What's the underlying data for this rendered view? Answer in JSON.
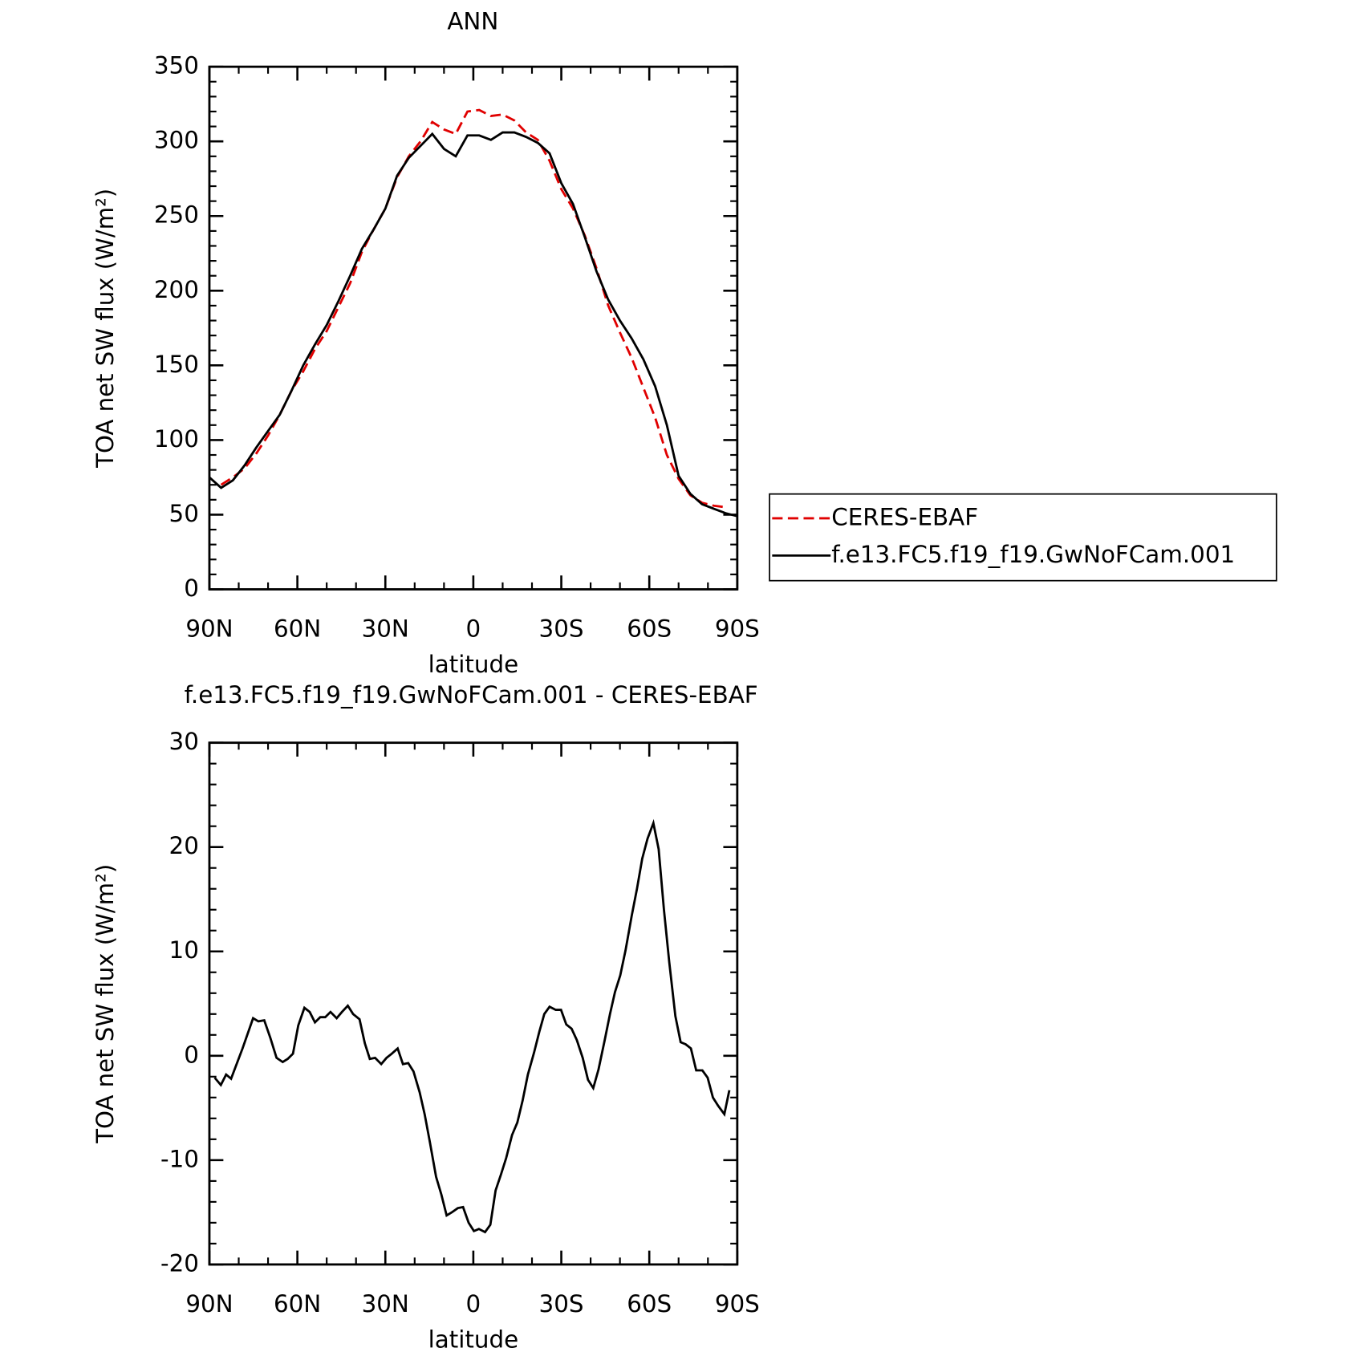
{
  "chart_data": [
    {
      "type": "line",
      "title": "ANN",
      "xlabel": "latitude",
      "ylabel": "TOA net SW flux (W/m²)",
      "x": [
        90,
        86,
        82,
        78,
        74,
        70,
        66,
        62,
        58,
        54,
        50,
        46,
        42,
        38,
        34,
        30,
        26,
        22,
        18,
        14,
        10,
        6,
        2,
        -2,
        -6,
        -10,
        -14,
        -18,
        -22,
        -26,
        -30,
        -34,
        -38,
        -42,
        -46,
        -50,
        -54,
        -58,
        -62,
        -66,
        -70,
        -74,
        -78,
        -82,
        -86,
        -90
      ],
      "series": [
        {
          "name": "CERES-EBAF",
          "color": "#e00000",
          "dashed": true,
          "values": [
            null,
            70,
            75,
            81,
            91,
            103,
            117,
            133,
            146,
            161,
            173,
            189,
            205,
            226,
            241,
            255,
            276,
            290,
            300,
            313,
            308,
            305,
            320,
            321,
            317,
            318,
            314,
            306,
            301,
            287,
            268,
            255,
            237,
            215,
            190,
            172,
            155,
            135,
            115,
            90,
            74,
            63,
            58,
            56,
            55,
            null
          ]
        },
        {
          "name": "f.e13.FC5.f19_f19.GwNoFCam.001",
          "color": "#000000",
          "dashed": false,
          "values": [
            75,
            68,
            73,
            83,
            95,
            106,
            117,
            133,
            150,
            164,
            177,
            193,
            210,
            228,
            241,
            255,
            277,
            289,
            297,
            305,
            295,
            290,
            304,
            304,
            301,
            306,
            306,
            303,
            299,
            292,
            272,
            258,
            236,
            213,
            194,
            180,
            168,
            154,
            136,
            110,
            76,
            64,
            57,
            54,
            51,
            49
          ]
        }
      ],
      "xlim": [
        90,
        -90
      ],
      "xticks": [
        {
          "value": 90,
          "label": "90N"
        },
        {
          "value": 60,
          "label": "60N"
        },
        {
          "value": 30,
          "label": "30N"
        },
        0,
        {
          "value": -30,
          "label": "30S"
        },
        {
          "value": -60,
          "label": "60S"
        },
        {
          "value": -90,
          "label": "90S"
        }
      ],
      "ylim": [
        0,
        350
      ],
      "yticks": [
        0,
        50,
        100,
        150,
        200,
        250,
        300,
        350
      ],
      "legend": "right"
    },
    {
      "type": "line",
      "title": "f.e13.FC5.f19_f19.GwNoFCam.001 - CERES-EBAF",
      "xlabel": "latitude",
      "ylabel": "TOA net SW flux (W/m²)",
      "x": [
        88.2,
        86.1,
        84.3,
        82.6,
        78.7,
        75.1,
        73.3,
        71.3,
        69.2,
        67.1,
        65.0,
        63.3,
        61.5,
        59.7,
        57.6,
        55.8,
        54.0,
        52.2,
        50.5,
        48.7,
        46.6,
        44.8,
        42.8,
        41.0,
        38.8,
        37.0,
        35.3,
        33.5,
        31.4,
        29.6,
        27.8,
        25.8,
        24.0,
        22.2,
        20.4,
        18.3,
        16.6,
        14.8,
        12.7,
        10.9,
        9.1,
        7.3,
        5.3,
        3.5,
        1.6,
        -0.2,
        -1.9,
        -4.0,
        -5.8,
        -7.6,
        -9.4,
        -11.2,
        -13.2,
        -15.0,
        -16.8,
        -18.6,
        -20.7,
        -22.5,
        -24.2,
        -26.0,
        -28.1,
        -29.9,
        -31.7,
        -33.5,
        -35.3,
        -37.3,
        -39.1,
        -40.9,
        -42.7,
        -44.8,
        -46.6,
        -48.3,
        -50.1,
        -51.9,
        -54.0,
        -55.8,
        -57.6,
        -59.4,
        -61.4,
        -63.2,
        -65.0,
        -66.8,
        -68.9,
        -70.7,
        -72.4,
        -74.2,
        -76.0,
        -78.1,
        -79.9,
        -81.7,
        -83.5,
        -85.6,
        -87.3
      ],
      "values": [
        -2.1,
        -2.8,
        -1.8,
        -2.2,
        0.7,
        3.6,
        3.3,
        3.4,
        1.7,
        -0.2,
        -0.6,
        -0.3,
        0.2,
        2.9,
        4.6,
        4.2,
        3.2,
        3.7,
        3.7,
        4.2,
        3.6,
        4.2,
        4.8,
        4.0,
        3.5,
        1.2,
        -0.3,
        -0.2,
        -0.8,
        -0.2,
        0.2,
        0.7,
        -0.8,
        -0.7,
        -1.5,
        -3.5,
        -5.6,
        -8.3,
        -11.6,
        -13.3,
        -15.3,
        -15.0,
        -14.6,
        -14.5,
        -16.0,
        -16.8,
        -16.6,
        -16.9,
        -16.2,
        -12.9,
        -11.4,
        -9.8,
        -7.6,
        -6.4,
        -4.3,
        -1.8,
        0.3,
        2.3,
        4.0,
        4.7,
        4.4,
        4.4,
        3.0,
        2.6,
        1.5,
        -0.2,
        -2.3,
        -3.1,
        -1.3,
        1.5,
        4.0,
        6.1,
        7.7,
        10.1,
        13.4,
        16.0,
        18.9,
        20.8,
        22.3,
        19.8,
        14.0,
        9.0,
        3.8,
        1.3,
        1.1,
        0.7,
        -1.4,
        -1.4,
        -2.1,
        -4.0,
        -4.8,
        -5.6,
        -3.3
      ],
      "color": "#000000",
      "xlim": [
        90,
        -90
      ],
      "xticks": [
        {
          "value": 90,
          "label": "90N"
        },
        {
          "value": 60,
          "label": "60N"
        },
        {
          "value": 30,
          "label": "30N"
        },
        0,
        {
          "value": -30,
          "label": "30S"
        },
        {
          "value": -60,
          "label": "60S"
        },
        {
          "value": -90,
          "label": "90S"
        }
      ],
      "ylim": [
        -20,
        30
      ],
      "yticks": [
        -20,
        -10,
        0,
        10,
        20,
        30
      ]
    }
  ]
}
